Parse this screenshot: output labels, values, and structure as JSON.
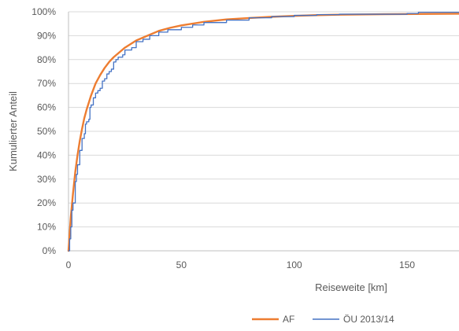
{
  "chart_data": {
    "type": "line",
    "xlabel": "Reiseweite [km]",
    "ylabel": "Kumulierter Anteil",
    "xlim": [
      0,
      173
    ],
    "ylim": [
      0,
      1
    ],
    "x_ticks": [
      0,
      50,
      100,
      150
    ],
    "y_ticks": [
      0,
      0.1,
      0.2,
      0.3,
      0.4,
      0.5,
      0.6,
      0.7,
      0.8,
      0.9,
      1.0
    ],
    "x_tick_labels": [
      "0",
      "50",
      "100",
      "150"
    ],
    "y_tick_labels": [
      "0%",
      "10%",
      "20%",
      "30%",
      "40%",
      "50%",
      "60%",
      "70%",
      "80%",
      "90%",
      "100%"
    ],
    "grid": "horizontal",
    "legend_position": "bottom-right",
    "series": [
      {
        "name": "AF",
        "color": "#ED7D31",
        "style": "smooth",
        "points": [
          [
            0,
            0
          ],
          [
            0.5,
            0.07
          ],
          [
            1,
            0.14
          ],
          [
            2,
            0.24
          ],
          [
            3,
            0.33
          ],
          [
            4,
            0.4
          ],
          [
            5,
            0.46
          ],
          [
            6,
            0.51
          ],
          [
            7,
            0.555
          ],
          [
            8,
            0.59
          ],
          [
            10,
            0.65
          ],
          [
            12,
            0.7
          ],
          [
            14,
            0.735
          ],
          [
            16,
            0.765
          ],
          [
            18,
            0.79
          ],
          [
            20,
            0.81
          ],
          [
            25,
            0.85
          ],
          [
            30,
            0.88
          ],
          [
            35,
            0.9
          ],
          [
            40,
            0.92
          ],
          [
            45,
            0.933
          ],
          [
            50,
            0.943
          ],
          [
            60,
            0.958
          ],
          [
            70,
            0.968
          ],
          [
            80,
            0.974
          ],
          [
            90,
            0.979
          ],
          [
            100,
            0.983
          ],
          [
            110,
            0.986
          ],
          [
            120,
            0.988
          ],
          [
            140,
            0.99
          ],
          [
            160,
            0.991
          ],
          [
            173,
            0.992
          ]
        ]
      },
      {
        "name": "ÖU 2013/14",
        "color": "#4472C4",
        "style": "step",
        "points": [
          [
            0,
            0
          ],
          [
            0.5,
            0.05
          ],
          [
            1,
            0.1
          ],
          [
            1.5,
            0.17
          ],
          [
            2,
            0.2
          ],
          [
            3,
            0.29
          ],
          [
            3.5,
            0.32
          ],
          [
            4,
            0.36
          ],
          [
            5,
            0.42
          ],
          [
            6,
            0.47
          ],
          [
            7,
            0.49
          ],
          [
            7.5,
            0.53
          ],
          [
            8,
            0.54
          ],
          [
            9,
            0.55
          ],
          [
            9.5,
            0.6
          ],
          [
            10,
            0.61
          ],
          [
            11,
            0.64
          ],
          [
            12,
            0.66
          ],
          [
            13,
            0.67
          ],
          [
            14,
            0.68
          ],
          [
            15,
            0.71
          ],
          [
            16,
            0.72
          ],
          [
            17,
            0.74
          ],
          [
            18,
            0.75
          ],
          [
            19,
            0.76
          ],
          [
            20,
            0.79
          ],
          [
            21,
            0.8
          ],
          [
            22,
            0.81
          ],
          [
            24,
            0.82
          ],
          [
            25,
            0.84
          ],
          [
            28,
            0.85
          ],
          [
            30,
            0.875
          ],
          [
            33,
            0.885
          ],
          [
            36,
            0.9
          ],
          [
            40,
            0.915
          ],
          [
            44,
            0.925
          ],
          [
            50,
            0.935
          ],
          [
            55,
            0.945
          ],
          [
            60,
            0.955
          ],
          [
            70,
            0.965
          ],
          [
            80,
            0.975
          ],
          [
            90,
            0.98
          ],
          [
            100,
            0.985
          ],
          [
            110,
            0.988
          ],
          [
            120,
            0.99
          ],
          [
            150,
            0.993
          ],
          [
            155,
            0.998
          ],
          [
            173,
            0.998
          ]
        ]
      }
    ]
  }
}
